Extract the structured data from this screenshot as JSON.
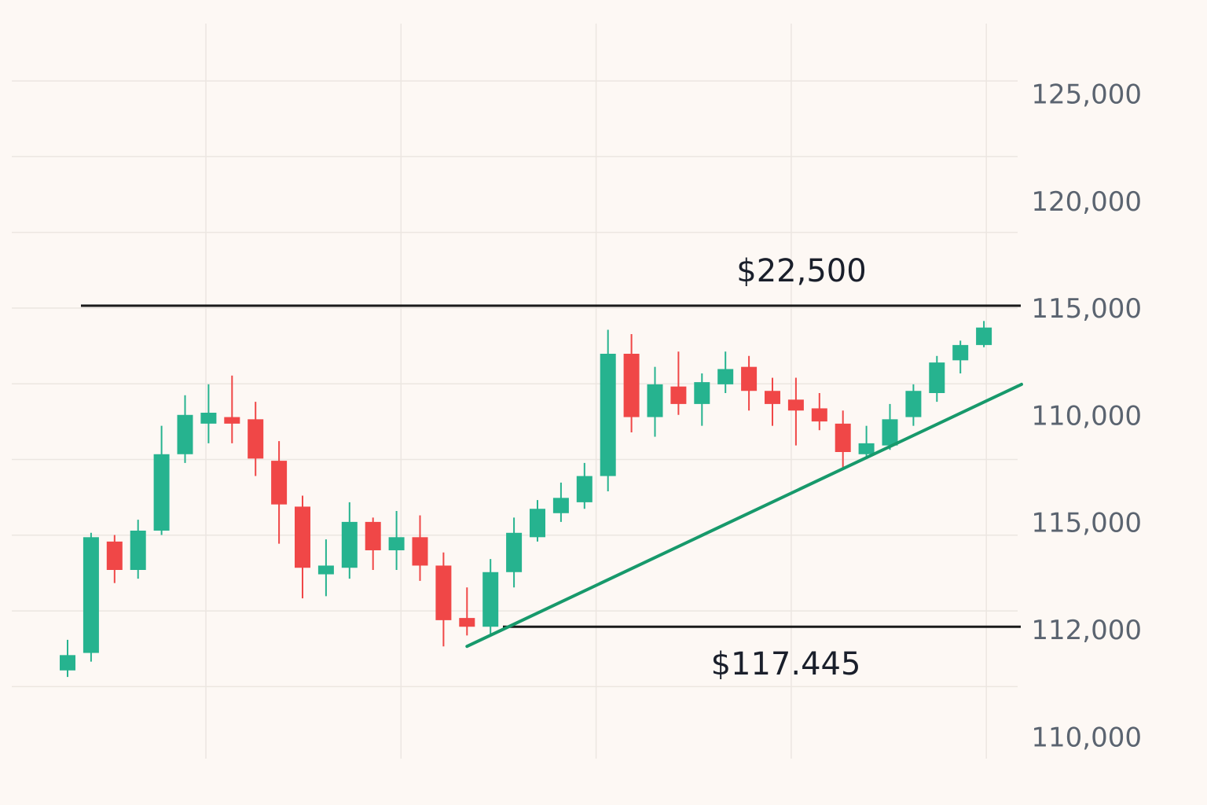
{
  "chart_data": {
    "type": "candlestick",
    "y_axis_labels": [
      "125,000",
      "120,000",
      "115,000",
      "110,000",
      "115,000",
      "112,000",
      "110,000"
    ],
    "ylim": [
      94660,
      128320
    ],
    "up_color": "#26b38f",
    "down_color": "#f04747",
    "open": [
      98700,
      99500,
      104600,
      103300,
      105100,
      108600,
      110000,
      110300,
      110200,
      108300,
      106200,
      103100,
      103400,
      105500,
      104200,
      104800,
      103500,
      101100,
      100700,
      103200,
      104800,
      105900,
      106400,
      107600,
      113200,
      110300,
      111700,
      110900,
      111800,
      112600,
      111500,
      111100,
      110700,
      110000,
      108600,
      109000,
      110300,
      111400,
      112900,
      113600
    ],
    "high": [
      100100,
      105000,
      104900,
      105600,
      109900,
      111300,
      111800,
      112200,
      111000,
      109200,
      106700,
      104700,
      106400,
      105700,
      106000,
      105800,
      104100,
      102500,
      103800,
      105700,
      106500,
      107300,
      108200,
      114300,
      114100,
      112600,
      113300,
      112300,
      113300,
      113100,
      112100,
      112100,
      111400,
      110600,
      109900,
      110900,
      111800,
      113100,
      113800,
      114700
    ],
    "low": [
      98400,
      99100,
      102700,
      102900,
      104900,
      108200,
      109100,
      109100,
      107600,
      104500,
      102000,
      102100,
      102900,
      103300,
      103300,
      102800,
      99800,
      100300,
      100300,
      102500,
      104600,
      105500,
      106100,
      106900,
      109600,
      109400,
      110400,
      109900,
      111400,
      110600,
      109900,
      109000,
      109700,
      107900,
      108400,
      108800,
      109900,
      111000,
      112300,
      113500
    ],
    "close": [
      99400,
      104800,
      103300,
      105100,
      108600,
      110400,
      110500,
      110000,
      108400,
      106300,
      103400,
      103500,
      105500,
      104200,
      104800,
      103500,
      101000,
      100700,
      103200,
      105000,
      106100,
      106600,
      107600,
      113200,
      110300,
      111800,
      110900,
      111900,
      112500,
      111500,
      110900,
      110600,
      110100,
      108700,
      109100,
      110200,
      111500,
      112800,
      113600,
      114400
    ],
    "levels": [
      115400,
      100700
    ],
    "level_color": "#1a1a1a",
    "trendline": {
      "x": [
        17,
        40.6
      ],
      "values": [
        99800,
        111800
      ],
      "color": "#17996b"
    },
    "annotations": [
      "$22,500",
      "$117.445"
    ]
  }
}
